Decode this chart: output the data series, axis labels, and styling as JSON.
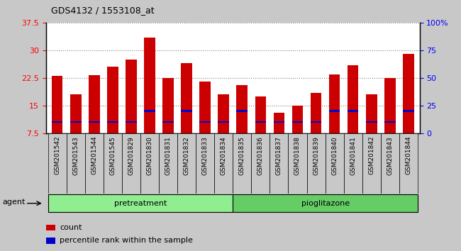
{
  "title": "GDS4132 / 1553108_at",
  "samples": [
    "GSM201542",
    "GSM201543",
    "GSM201544",
    "GSM201545",
    "GSM201829",
    "GSM201830",
    "GSM201831",
    "GSM201832",
    "GSM201833",
    "GSM201834",
    "GSM201835",
    "GSM201836",
    "GSM201837",
    "GSM201838",
    "GSM201839",
    "GSM201840",
    "GSM201841",
    "GSM201842",
    "GSM201843",
    "GSM201844"
  ],
  "count_values": [
    23.0,
    18.0,
    23.2,
    25.5,
    27.5,
    33.5,
    22.5,
    26.5,
    21.5,
    18.0,
    20.5,
    17.5,
    13.0,
    15.0,
    18.5,
    23.5,
    26.0,
    18.0,
    22.5,
    29.0
  ],
  "percentile_values": [
    10.5,
    10.5,
    10.5,
    10.5,
    10.5,
    13.5,
    10.5,
    13.5,
    10.5,
    10.5,
    13.5,
    10.5,
    10.5,
    10.5,
    10.5,
    13.5,
    13.5,
    10.5,
    10.5,
    13.5
  ],
  "bar_color": "#CC0000",
  "percentile_color": "#0000CC",
  "ylim_left": [
    7.5,
    37.5
  ],
  "ylim_right": [
    0,
    100
  ],
  "yticks_left": [
    7.5,
    15.0,
    22.5,
    30.0,
    37.5
  ],
  "ytick_labels_left": [
    "7.5",
    "15",
    "22.5",
    "30",
    "37.5"
  ],
  "yticks_right": [
    0,
    25,
    50,
    75,
    100
  ],
  "ytick_labels_right": [
    "0",
    "25",
    "50",
    "75",
    "100%"
  ],
  "bar_width": 0.6,
  "bg_color": "#C8C8C8",
  "plot_bg": "#FFFFFF",
  "pretreat_color": "#90EE90",
  "pioglitazone_color": "#66CC66",
  "legend_count": "count",
  "legend_pct": "percentile rank within the sample"
}
